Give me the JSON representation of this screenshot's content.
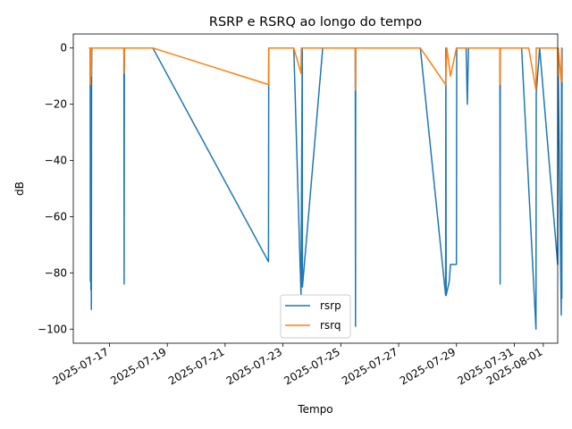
{
  "chart_data": {
    "type": "line",
    "title": "RSRP e RSRQ ao longo do tempo",
    "xlabel": "Tempo",
    "ylabel": "dB",
    "xlim": [
      "2025-07-15T18:00",
      "2025-08-01T12:00"
    ],
    "ylim": [
      -105,
      5
    ],
    "xticks": [
      "2025-07-17",
      "2025-07-19",
      "2025-07-21",
      "2025-07-23",
      "2025-07-25",
      "2025-07-27",
      "2025-07-29",
      "2025-07-31",
      "2025-08-01"
    ],
    "yticks": [
      0,
      -20,
      -40,
      -60,
      -80,
      -100
    ],
    "ytick_labels": [
      "0",
      "−20",
      "−40",
      "−60",
      "−80",
      "−100"
    ],
    "legend_position": "lower center",
    "colors": {
      "rsrp": "#1f77b4",
      "rsrq": "#ff7f0e"
    },
    "series": [
      {
        "name": "rsrp",
        "points": [
          [
            "2025-07-16T07:00",
            0
          ],
          [
            "2025-07-16T08:00",
            0
          ],
          [
            "2025-07-16T08:12",
            -83
          ],
          [
            "2025-07-16T08:24",
            -13
          ],
          [
            "2025-07-16T08:36",
            -86
          ],
          [
            "2025-07-16T08:48",
            -10
          ],
          [
            "2025-07-16T09:00",
            -93
          ],
          [
            "2025-07-16T09:12",
            -10
          ],
          [
            "2025-07-16T09:24",
            0
          ],
          [
            "2025-07-17T12:00",
            0
          ],
          [
            "2025-07-17T12:12",
            -84
          ],
          [
            "2025-07-17T12:24",
            0
          ],
          [
            "2025-07-18T12:00",
            0
          ],
          [
            "2025-07-22T12:00",
            -76
          ],
          [
            "2025-07-22T12:12",
            0
          ],
          [
            "2025-07-23T09:00",
            0
          ],
          [
            "2025-07-23T15:00",
            -88
          ],
          [
            "2025-07-23T16:00",
            0
          ],
          [
            "2025-07-23T16:12",
            -85
          ],
          [
            "2025-07-24T09:00",
            0
          ],
          [
            "2025-07-25T12:00",
            0
          ],
          [
            "2025-07-25T12:12",
            -99
          ],
          [
            "2025-07-25T12:24",
            0
          ],
          [
            "2025-07-27T18:00",
            0
          ],
          [
            "2025-07-28T15:00",
            -88
          ],
          [
            "2025-07-28T15:12",
            0
          ],
          [
            "2025-07-28T15:24",
            -88
          ],
          [
            "2025-07-28T18:00",
            -83
          ],
          [
            "2025-07-28T19:00",
            -77
          ],
          [
            "2025-07-29T00:00",
            -77
          ],
          [
            "2025-07-29T00:12",
            0
          ],
          [
            "2025-07-29T06:00",
            0
          ],
          [
            "2025-07-29T08:00",
            0
          ],
          [
            "2025-07-29T09:00",
            -20
          ],
          [
            "2025-07-29T10:00",
            0
          ],
          [
            "2025-07-30T12:00",
            0
          ],
          [
            "2025-07-30T12:12",
            -84
          ],
          [
            "2025-07-30T12:24",
            0
          ],
          [
            "2025-07-31T06:00",
            0
          ],
          [
            "2025-07-31T18:00",
            -100
          ],
          [
            "2025-07-31T18:12",
            -16
          ],
          [
            "2025-07-31T21:00",
            0
          ],
          [
            "2025-08-01T12:00",
            -77
          ],
          [
            "2025-08-01T12:12",
            0
          ],
          [
            "2025-08-01T15:00",
            -95
          ],
          [
            "2025-08-01T15:12",
            0
          ],
          [
            "2025-08-01T15:24",
            -89
          ],
          [
            "2025-08-01T15:36",
            0
          ]
        ]
      },
      {
        "name": "rsrq",
        "points": [
          [
            "2025-07-16T07:00",
            0
          ],
          [
            "2025-07-16T08:00",
            0
          ],
          [
            "2025-07-16T08:12",
            -13
          ],
          [
            "2025-07-16T08:24",
            0
          ],
          [
            "2025-07-16T09:00",
            -10
          ],
          [
            "2025-07-16T09:12",
            0
          ],
          [
            "2025-07-17T12:00",
            0
          ],
          [
            "2025-07-17T12:12",
            -9
          ],
          [
            "2025-07-17T12:24",
            0
          ],
          [
            "2025-07-18T12:00",
            0
          ],
          [
            "2025-07-22T12:00",
            -13
          ],
          [
            "2025-07-22T12:12",
            0
          ],
          [
            "2025-07-23T09:00",
            0
          ],
          [
            "2025-07-23T15:00",
            -9
          ],
          [
            "2025-07-23T15:12",
            0
          ],
          [
            "2025-07-24T09:00",
            0
          ],
          [
            "2025-07-25T12:00",
            0
          ],
          [
            "2025-07-25T12:12",
            -15
          ],
          [
            "2025-07-25T12:24",
            0
          ],
          [
            "2025-07-27T18:00",
            0
          ],
          [
            "2025-07-28T15:00",
            -13
          ],
          [
            "2025-07-28T16:00",
            0
          ],
          [
            "2025-07-28T19:00",
            -10
          ],
          [
            "2025-07-29T00:00",
            0
          ],
          [
            "2025-07-30T12:00",
            0
          ],
          [
            "2025-07-30T12:12",
            -13
          ],
          [
            "2025-07-30T12:24",
            0
          ],
          [
            "2025-07-31T12:00",
            0
          ],
          [
            "2025-07-31T18:00",
            -15
          ],
          [
            "2025-07-31T18:12",
            0
          ],
          [
            "2025-08-01T12:00",
            0
          ],
          [
            "2025-08-01T12:12",
            -10
          ],
          [
            "2025-08-01T12:24",
            0
          ],
          [
            "2025-08-01T15:00",
            -12
          ],
          [
            "2025-08-01T15:12",
            0
          ],
          [
            "2025-08-01T15:24",
            -12
          ]
        ]
      }
    ]
  }
}
